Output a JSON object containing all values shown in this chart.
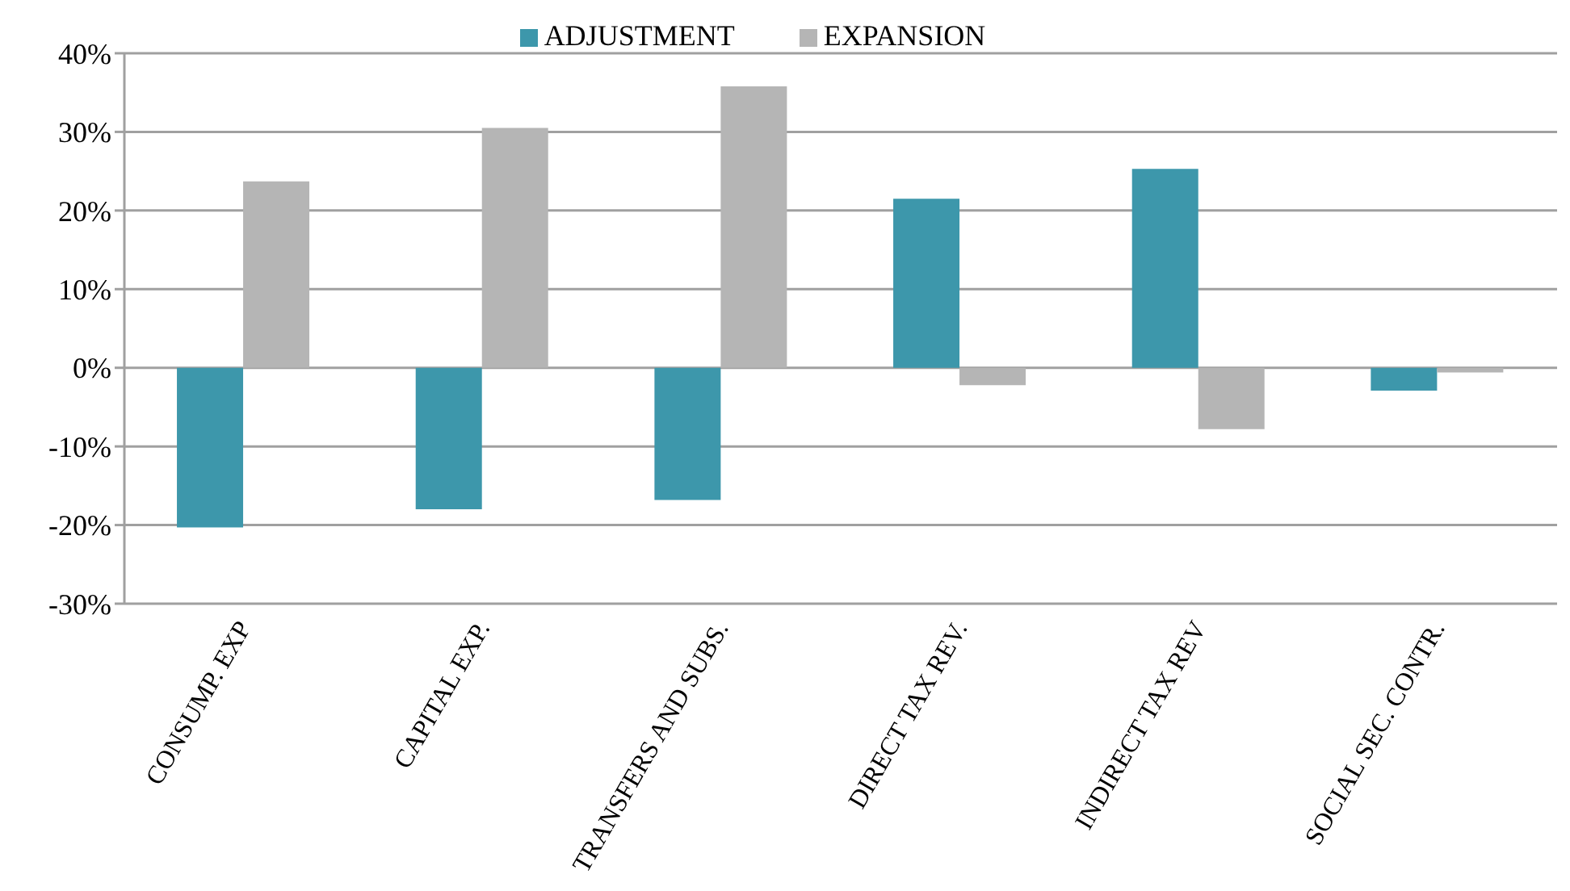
{
  "chart_data": {
    "type": "bar",
    "categories": [
      "CONSUMP. EXP",
      "CAPITAL EXP.",
      "TRANSFERS AND SUBS.",
      "DIRECT TAX REV.",
      "INDIRECT TAX REV",
      "SOCIAL SEC. CONTR."
    ],
    "series": [
      {
        "name": "ADJUSTMENT",
        "color": "#3d97ab",
        "values": [
          -20.3,
          -18.0,
          -16.8,
          21.5,
          25.3,
          -2.9
        ]
      },
      {
        "name": "EXPANSION",
        "color": "#b5b5b5",
        "values": [
          23.7,
          30.5,
          35.8,
          -2.2,
          -7.8,
          -0.6
        ]
      }
    ],
    "ylim": [
      -30,
      40
    ],
    "yticks": [
      {
        "value": -30,
        "label": "-30%"
      },
      {
        "value": -20,
        "label": "-20%"
      },
      {
        "value": -10,
        "label": "-10%"
      },
      {
        "value": 0,
        "label": "0%"
      },
      {
        "value": 10,
        "label": "10%"
      },
      {
        "value": 20,
        "label": "20%"
      },
      {
        "value": 30,
        "label": "30%"
      },
      {
        "value": 40,
        "label": "40%"
      }
    ],
    "grid": "y",
    "legend": "top"
  }
}
